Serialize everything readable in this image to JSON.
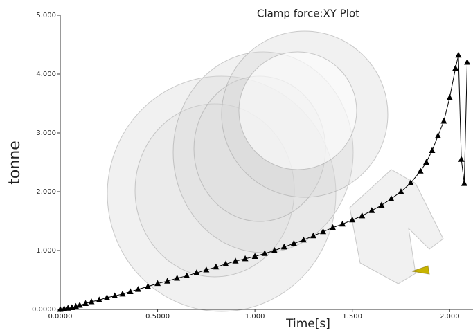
{
  "chart_data": {
    "type": "line",
    "title": "Clamp force:XY Plot",
    "x_label": "Time[s]",
    "y_label": "tonne",
    "x": [
      0,
      0.02,
      0.04,
      0.06,
      0.08,
      0.1,
      0.13,
      0.16,
      0.2,
      0.24,
      0.28,
      0.32,
      0.36,
      0.4,
      0.45,
      0.5,
      0.55,
      0.6,
      0.65,
      0.7,
      0.75,
      0.8,
      0.85,
      0.9,
      0.95,
      1.0,
      1.05,
      1.1,
      1.15,
      1.2,
      1.25,
      1.3,
      1.35,
      1.4,
      1.45,
      1.5,
      1.55,
      1.6,
      1.65,
      1.7,
      1.75,
      1.8,
      1.85,
      1.88,
      1.91,
      1.94,
      1.97,
      2.0,
      2.03,
      2.045,
      2.06,
      2.075,
      2.09
    ],
    "values": [
      0,
      0.01,
      0.02,
      0.03,
      0.05,
      0.07,
      0.1,
      0.13,
      0.16,
      0.2,
      0.23,
      0.26,
      0.3,
      0.34,
      0.39,
      0.44,
      0.48,
      0.53,
      0.57,
      0.62,
      0.67,
      0.72,
      0.77,
      0.82,
      0.86,
      0.9,
      0.95,
      1.0,
      1.06,
      1.12,
      1.18,
      1.25,
      1.32,
      1.39,
      1.45,
      1.52,
      1.59,
      1.68,
      1.77,
      1.88,
      2.0,
      2.15,
      2.35,
      2.5,
      2.7,
      2.95,
      3.2,
      3.6,
      4.1,
      4.32,
      2.55,
      2.14,
      4.2
    ],
    "color": "#000000",
    "xlim": [
      0,
      2.12
    ],
    "ylim": [
      0,
      5
    ],
    "xticks": [
      {
        "value": 0,
        "label": "0.0000"
      },
      {
        "value": 0.5,
        "label": "0.5000"
      },
      {
        "value": 1,
        "label": "1.000"
      },
      {
        "value": 1.5,
        "label": "1.500"
      },
      {
        "value": 2,
        "label": "2.000"
      }
    ],
    "yticks": [
      {
        "value": 0,
        "label": "0.0000"
      },
      {
        "value": 1,
        "label": "1.000"
      },
      {
        "value": 2,
        "label": "2.000"
      },
      {
        "value": 3,
        "label": "3.000"
      },
      {
        "value": 4,
        "label": "4.000"
      },
      {
        "value": 5,
        "label": "5.000"
      }
    ]
  }
}
